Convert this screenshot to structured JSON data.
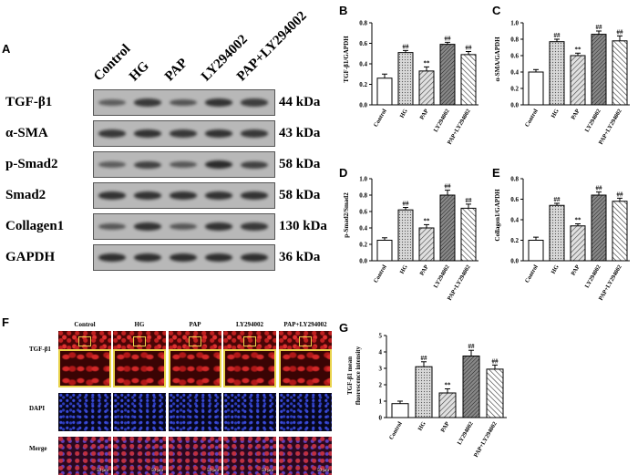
{
  "panels": {
    "A": "A",
    "B": "B",
    "C": "C",
    "D": "D",
    "E": "E",
    "F": "F",
    "G": "G"
  },
  "blot": {
    "lanes": [
      "Control",
      "HG",
      "PAP",
      "LY294002",
      "PAP+LY294002"
    ],
    "rows": [
      {
        "protein": "TGF-β1",
        "kda": "44 kDa",
        "intensity": [
          0.45,
          0.85,
          0.55,
          0.9,
          0.8
        ]
      },
      {
        "protein": "α-SMA",
        "kda": "43 kDa",
        "intensity": [
          0.85,
          0.9,
          0.85,
          0.9,
          0.85
        ]
      },
      {
        "protein": "p-Smad2",
        "kda": "58 kDa",
        "intensity": [
          0.45,
          0.75,
          0.5,
          1.0,
          0.75
        ]
      },
      {
        "protein": "Smad2",
        "kda": "58 kDa",
        "intensity": [
          0.9,
          0.9,
          0.9,
          0.9,
          0.9
        ]
      },
      {
        "protein": "Collagen1",
        "kda": "130 kDa",
        "intensity": [
          0.5,
          0.9,
          0.5,
          0.9,
          0.85
        ]
      },
      {
        "protein": "GAPDH",
        "kda": "36 kDa",
        "intensity": [
          0.95,
          0.95,
          0.95,
          0.95,
          0.95
        ]
      }
    ]
  },
  "fluorescence": {
    "columns": [
      "Control",
      "HG",
      "PAP",
      "LY294002",
      "PAP+LY294002"
    ],
    "rows": [
      "TGF-β1",
      "",
      "DAPI",
      "Merge"
    ],
    "scale_bar": "50 µm"
  },
  "chart_data": [
    {
      "id": "B",
      "type": "bar",
      "categories": [
        "Control",
        "HG",
        "PAP",
        "LY294002",
        "PAP+LY294002"
      ],
      "values": [
        0.26,
        0.51,
        0.33,
        0.59,
        0.49
      ],
      "errors": [
        0.04,
        0.02,
        0.04,
        0.02,
        0.03
      ],
      "annotations": [
        "",
        "##",
        "**",
        "##",
        "##"
      ],
      "ylabel": "TGF-β1/GAPDH",
      "ylim": [
        0,
        0.8
      ],
      "yticks": [
        "0.0",
        "0.2",
        "0.4",
        "0.6",
        "0.8"
      ]
    },
    {
      "id": "C",
      "type": "bar",
      "categories": [
        "Control",
        "HG",
        "PAP",
        "LY294002",
        "PAP+LY294002"
      ],
      "values": [
        0.4,
        0.77,
        0.6,
        0.86,
        0.78
      ],
      "errors": [
        0.03,
        0.03,
        0.03,
        0.04,
        0.06
      ],
      "annotations": [
        "",
        "##",
        "**",
        "##",
        "##"
      ],
      "ylabel": "α-SMA/GAPDH",
      "ylim": [
        0,
        1.0
      ],
      "yticks": [
        "0.0",
        "0.2",
        "0.4",
        "0.6",
        "0.8",
        "1.0"
      ]
    },
    {
      "id": "D",
      "type": "bar",
      "categories": [
        "Control",
        "HG",
        "PAP",
        "LY294002",
        "PAP+LY294002"
      ],
      "values": [
        0.25,
        0.62,
        0.4,
        0.8,
        0.64
      ],
      "errors": [
        0.03,
        0.03,
        0.04,
        0.06,
        0.05
      ],
      "annotations": [
        "",
        "##",
        "**",
        "##",
        "##"
      ],
      "ylabel": "p-Smad2/Smad2",
      "ylim": [
        0,
        1.0
      ],
      "yticks": [
        "0.0",
        "0.2",
        "0.4",
        "0.6",
        "0.8",
        "1.0"
      ]
    },
    {
      "id": "E",
      "type": "bar",
      "categories": [
        "Control",
        "HG",
        "PAP",
        "LY294002",
        "PAP+LY294002"
      ],
      "values": [
        0.2,
        0.54,
        0.34,
        0.64,
        0.58
      ],
      "errors": [
        0.03,
        0.02,
        0.02,
        0.03,
        0.03
      ],
      "annotations": [
        "",
        "##",
        "**",
        "##",
        "##"
      ],
      "ylabel": "Collagen1/GAPDH",
      "ylim": [
        0,
        0.8
      ],
      "yticks": [
        "0.0",
        "0.2",
        "0.4",
        "0.6",
        "0.8"
      ]
    },
    {
      "id": "G",
      "type": "bar",
      "categories": [
        "Control",
        "HG",
        "PAP",
        "LY294002",
        "PAP+LY294002"
      ],
      "values": [
        0.85,
        3.1,
        1.5,
        3.75,
        2.95
      ],
      "errors": [
        0.15,
        0.3,
        0.25,
        0.35,
        0.25
      ],
      "annotations": [
        "",
        "##",
        "**",
        "##",
        "##"
      ],
      "ylabel": "TGF-β1 mean fluorescence intensity",
      "ylim": [
        0,
        5
      ],
      "yticks": [
        "0",
        "1",
        "2",
        "3",
        "4",
        "5"
      ]
    }
  ]
}
